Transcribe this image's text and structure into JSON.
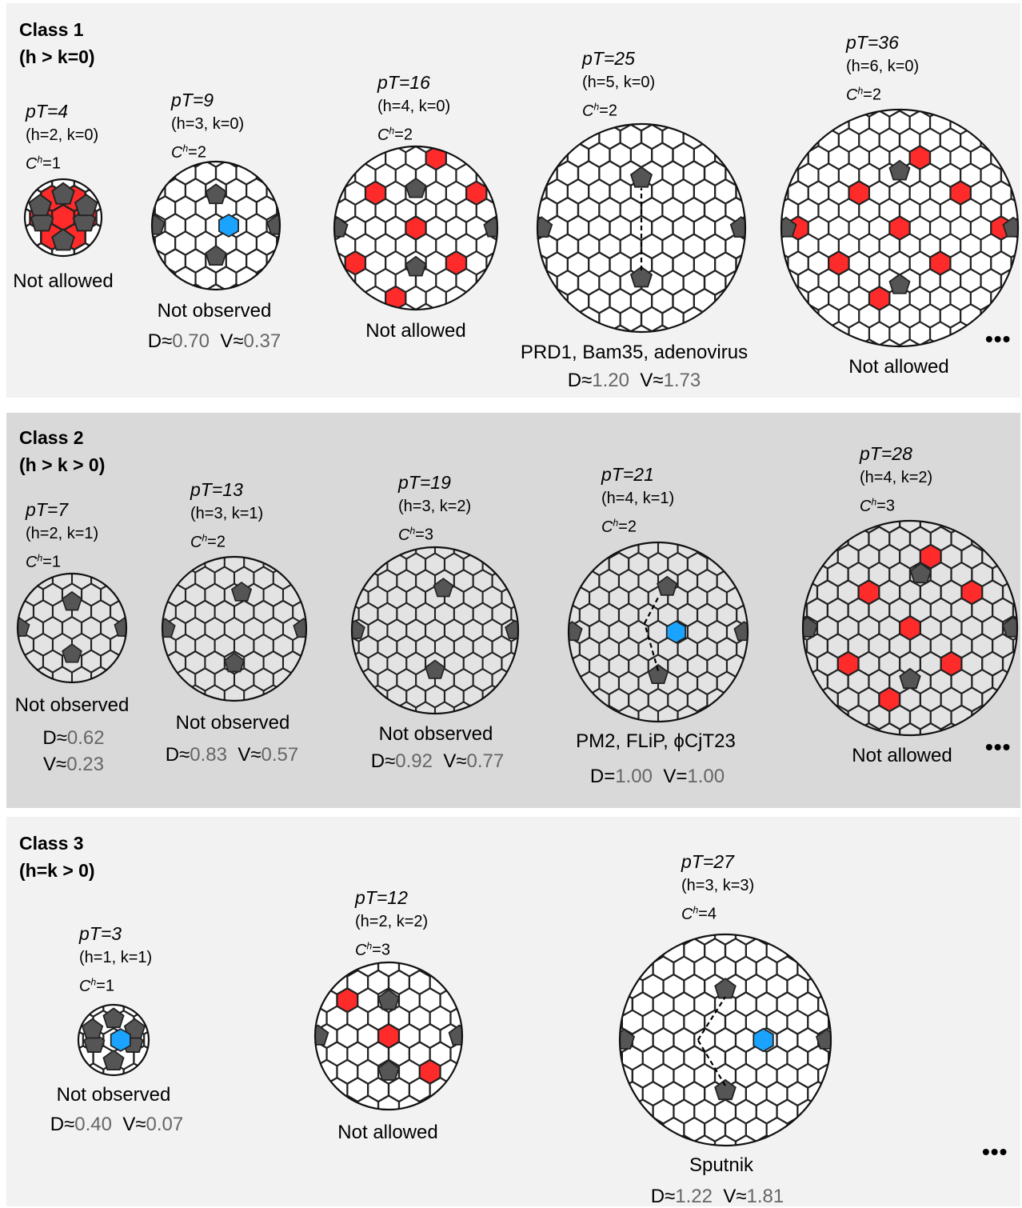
{
  "classes": [
    {
      "name": "Class 1",
      "condition": "(h > k=0)",
      "items": [
        {
          "pt": "pT=4",
          "hk": "(h=2, k=0)",
          "ch": "=1",
          "label": "Not allowed",
          "d": "",
          "v": "",
          "highlight": "red"
        },
        {
          "pt": "pT=9",
          "hk": "(h=3, k=0)",
          "ch": "=2",
          "label": "Not observed",
          "d": "0.70",
          "v": "0.37",
          "highlight": "blue"
        },
        {
          "pt": "pT=16",
          "hk": "(h=4, k=0)",
          "ch": "=2",
          "label": "Not allowed",
          "d": "",
          "v": "",
          "highlight": "red"
        },
        {
          "pt": "pT=25",
          "hk": "(h=5, k=0)",
          "ch": "=2",
          "label": "PRD1, Bam35, adenovirus",
          "d": "1.20",
          "v": "1.73",
          "highlight": "arrow"
        },
        {
          "pt": "pT=36",
          "hk": "(h=6, k=0)",
          "ch": "=2",
          "label": "Not allowed",
          "d": "",
          "v": "",
          "highlight": "red"
        }
      ],
      "ellipsis": "•••"
    },
    {
      "name": "Class 2",
      "condition": "(h > k > 0)",
      "items": [
        {
          "pt": "pT=7",
          "hk": "(h=2, k=1)",
          "ch": "=1",
          "label": "Not observed",
          "d": "0.62",
          "v": "0.23",
          "highlight": "none"
        },
        {
          "pt": "pT=13",
          "hk": "(h=3, k=1)",
          "ch": "=2",
          "label": "Not observed",
          "d": "0.83",
          "v": "0.57",
          "highlight": "none"
        },
        {
          "pt": "pT=19",
          "hk": "(h=3, k=2)",
          "ch": "=3",
          "label": "Not observed",
          "d": "0.92",
          "v": "0.77",
          "highlight": "none"
        },
        {
          "pt": "pT=21",
          "hk": "(h=4, k=1)",
          "ch": "=2",
          "label": "PM2, FLiP, ϕCjT23",
          "d": "1.00",
          "v": "1.00",
          "highlight": "blue-arrow"
        },
        {
          "pt": "pT=28",
          "hk": "(h=4, k=2)",
          "ch": "=3",
          "label": "Not allowed",
          "d": "",
          "v": "",
          "highlight": "red"
        }
      ],
      "ellipsis": "•••"
    },
    {
      "name": "Class 3",
      "condition": "(h=k > 0)",
      "items": [
        {
          "pt": "pT=3",
          "hk": "(h=1, k=1)",
          "ch": "=1",
          "label": "Not observed",
          "d": "0.40",
          "v": "0.07",
          "highlight": "blue"
        },
        {
          "pt": "pT=12",
          "hk": "(h=2, k=2)",
          "ch": "=3",
          "label": "Not allowed",
          "d": "",
          "v": "",
          "highlight": "red"
        },
        {
          "pt": "pT=27",
          "hk": "(h=3, k=3)",
          "ch": "=4",
          "label": "Sputnik",
          "d": "1.22",
          "v": "1.81",
          "highlight": "blue-arrow"
        }
      ],
      "ellipsis": "•••"
    }
  ],
  "symbols": {
    "d_prefix": "D≈",
    "v_prefix": "V≈",
    "d_eq": "D=",
    "v_eq": "V=",
    "ch_letter": "C",
    "ch_sup": "h"
  },
  "colors": {
    "panel_light": "#f2f2f2",
    "panel_dark": "#d9d9d9",
    "pentamer": "#555555",
    "red_hexamer": "#ff2a2a",
    "blue_hexamer": "#1aa3ff",
    "capsid_fill_light": "#ffffff",
    "capsid_fill_dark": "#e6e6e6"
  }
}
